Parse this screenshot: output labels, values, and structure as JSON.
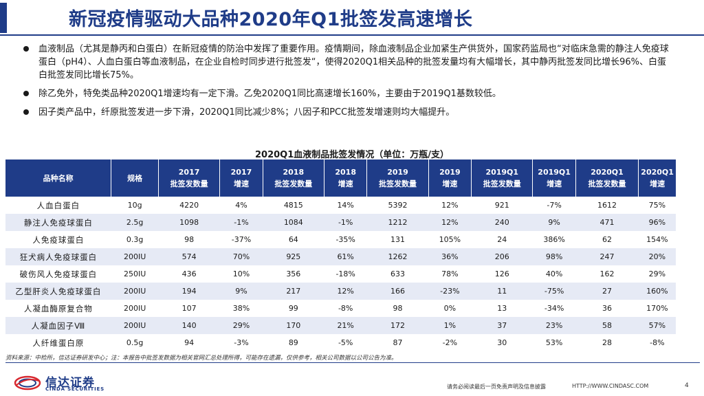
{
  "header": {
    "title": "新冠疫情驱动大品种2020年Q1批签发高速增长"
  },
  "bullets": [
    "血液制品（尤其是静丙和白蛋白）在新冠疫情的防治中发挥了重要作用。疫情期间，除血液制品企业加紧生产供货外，国家药监局也“对临床急需的静注人免疫球蛋白（pH4）、人血白蛋白等血液制品，在企业自检时同步进行批签发“，使得2020Q1相关品种的批签发量均有大幅增长，其中静丙批签发同比增长96%、白蛋白批签发同比增长75%。",
    "除乙免外，特免类品种2020Q1增速均有一定下滑。乙免2020Q1同比高速增长160%，主要由于2019Q1基数较低。",
    "因子类产品中，纤原批签发进一步下滑，2020Q1同比减少8%；八因子和PCC批签发增速则均大幅提升。"
  ],
  "table": {
    "caption": "2020Q1血液制品批签发情况（单位：万瓶/支）",
    "headers": [
      [
        "品种名称",
        ""
      ],
      [
        "规格",
        ""
      ],
      [
        "2017",
        "批签发数量"
      ],
      [
        "2017",
        "增速"
      ],
      [
        "2018",
        "批签发数量"
      ],
      [
        "2018",
        "增速"
      ],
      [
        "2019",
        "批签发数量"
      ],
      [
        "2019",
        "增速"
      ],
      [
        "2019Q1",
        "批签发数量"
      ],
      [
        "2019Q1",
        "增速"
      ],
      [
        "2020Q1",
        "批签发数量"
      ],
      [
        "2020Q1",
        "增速"
      ]
    ],
    "rows": [
      [
        "人血白蛋白",
        "10g",
        "4220",
        "4%",
        "4815",
        "14%",
        "5392",
        "12%",
        "921",
        "-7%",
        "1612",
        "75%"
      ],
      [
        "静注人免疫球蛋白",
        "2.5g",
        "1098",
        "-1%",
        "1084",
        "-1%",
        "1212",
        "12%",
        "240",
        "9%",
        "471",
        "96%"
      ],
      [
        "人免疫球蛋白",
        "0.3g",
        "98",
        "-37%",
        "64",
        "-35%",
        "131",
        "105%",
        "24",
        "386%",
        "62",
        "154%"
      ],
      [
        "狂犬病人免疫球蛋白",
        "200IU",
        "574",
        "70%",
        "925",
        "61%",
        "1262",
        "36%",
        "206",
        "98%",
        "247",
        "20%"
      ],
      [
        "破伤风人免疫球蛋白",
        "250IU",
        "436",
        "10%",
        "356",
        "-18%",
        "633",
        "78%",
        "126",
        "40%",
        "162",
        "29%"
      ],
      [
        "乙型肝炎人免疫球蛋白",
        "200IU",
        "194",
        "9%",
        "217",
        "12%",
        "166",
        "-23%",
        "11",
        "-75%",
        "27",
        "160%"
      ],
      [
        "人凝血酶原复合物",
        "200IU",
        "107",
        "38%",
        "99",
        "-8%",
        "98",
        "0%",
        "13",
        "-34%",
        "36",
        "170%"
      ],
      [
        "人凝血因子Ⅷ",
        "200IU",
        "140",
        "29%",
        "170",
        "21%",
        "172",
        "1%",
        "37",
        "23%",
        "58",
        "57%"
      ],
      [
        "人纤维蛋白原",
        "0.5g",
        "94",
        "-3%",
        "89",
        "-5%",
        "87",
        "-2%",
        "30",
        "53%",
        "28",
        "-8%"
      ]
    ]
  },
  "source": "资料来源：中检所，信达证券研发中心；注：本报告中批签发数据为相关官网汇总处理所得，可能存在遗漏，仅供参考，相关公司数据以公司公告为准。",
  "footer": {
    "logo_cn": "信达证券",
    "logo_en": "CINDA SECURITIES",
    "disclaimer": "请务必阅读最后一页免责声明及信息披露",
    "url": "HTTP://WWW.CINDASC.COM",
    "page": "4"
  },
  "colors": {
    "brand": "#1f3c88",
    "row_alt": "#e6eaf5",
    "logo_red": "#d7282f"
  }
}
